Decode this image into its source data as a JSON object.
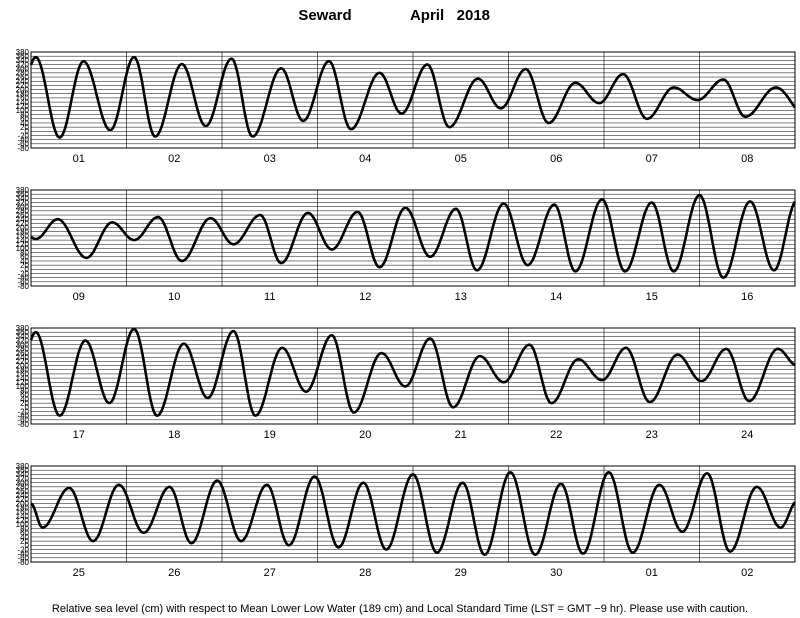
{
  "chart_data": {
    "type": "line",
    "title_station": "Seward",
    "title_period": "April   2018",
    "caption": "Relative sea level (cm) with respect to Mean Lower Low Water (189 cm) and Local Standard Time (LST = GMT −9 hr). Please use with caution.",
    "ylim": [
      -80,
      380
    ],
    "y_ticks": [
      "380",
      "360",
      "340",
      "320",
      "300",
      "280",
      "260",
      "240",
      "220",
      "200",
      "180",
      "160",
      "140",
      "120",
      "100",
      "80",
      "60",
      "40",
      "20",
      "0",
      "-20",
      "-40",
      "-60",
      "-80"
    ],
    "grid": true,
    "x_unit": "day",
    "panels": [
      {
        "day_labels": [
          "01",
          "02",
          "03",
          "04",
          "05",
          "06",
          "07",
          "08"
        ],
        "tide_events": [
          {
            "t": 0.05,
            "h": 355
          },
          {
            "t": 0.3,
            "h": -30
          },
          {
            "t": 0.55,
            "h": 335
          },
          {
            "t": 0.83,
            "h": 5
          },
          {
            "t": 1.08,
            "h": 355
          },
          {
            "t": 1.3,
            "h": -25
          },
          {
            "t": 1.58,
            "h": 322
          },
          {
            "t": 1.83,
            "h": 25
          },
          {
            "t": 2.1,
            "h": 348
          },
          {
            "t": 2.32,
            "h": -25
          },
          {
            "t": 2.62,
            "h": 302
          },
          {
            "t": 2.85,
            "h": 50
          },
          {
            "t": 3.12,
            "h": 336
          },
          {
            "t": 3.35,
            "h": 10
          },
          {
            "t": 3.65,
            "h": 280
          },
          {
            "t": 3.88,
            "h": 85
          },
          {
            "t": 4.15,
            "h": 320
          },
          {
            "t": 4.38,
            "h": 20
          },
          {
            "t": 4.68,
            "h": 252
          },
          {
            "t": 4.92,
            "h": 110
          },
          {
            "t": 5.18,
            "h": 298
          },
          {
            "t": 5.42,
            "h": 40
          },
          {
            "t": 5.7,
            "h": 232
          },
          {
            "t": 5.95,
            "h": 135
          },
          {
            "t": 6.2,
            "h": 274
          },
          {
            "t": 6.45,
            "h": 60
          },
          {
            "t": 6.73,
            "h": 210
          },
          {
            "t": 6.98,
            "h": 150
          },
          {
            "t": 7.25,
            "h": 248
          },
          {
            "t": 7.48,
            "h": 70
          },
          {
            "t": 7.8,
            "h": 210
          }
        ]
      },
      {
        "day_labels": [
          "09",
          "10",
          "11",
          "12",
          "13",
          "14",
          "15",
          "16"
        ],
        "tide_events": [
          {
            "t": 0.05,
            "h": 145
          },
          {
            "t": 0.28,
            "h": 240
          },
          {
            "t": 0.58,
            "h": 55
          },
          {
            "t": 0.85,
            "h": 225
          },
          {
            "t": 1.08,
            "h": 140
          },
          {
            "t": 1.33,
            "h": 250
          },
          {
            "t": 1.58,
            "h": 40
          },
          {
            "t": 1.88,
            "h": 245
          },
          {
            "t": 2.12,
            "h": 120
          },
          {
            "t": 2.4,
            "h": 260
          },
          {
            "t": 2.62,
            "h": 30
          },
          {
            "t": 2.9,
            "h": 270
          },
          {
            "t": 3.15,
            "h": 95
          },
          {
            "t": 3.42,
            "h": 275
          },
          {
            "t": 3.65,
            "h": 10
          },
          {
            "t": 3.92,
            "h": 295
          },
          {
            "t": 4.18,
            "h": 60
          },
          {
            "t": 4.45,
            "h": 290
          },
          {
            "t": 4.67,
            "h": -5
          },
          {
            "t": 4.95,
            "h": 315
          },
          {
            "t": 5.2,
            "h": 20
          },
          {
            "t": 5.48,
            "h": 310
          },
          {
            "t": 5.7,
            "h": -10
          },
          {
            "t": 5.98,
            "h": 335
          },
          {
            "t": 6.22,
            "h": -10
          },
          {
            "t": 6.5,
            "h": 320
          },
          {
            "t": 6.73,
            "h": -10
          },
          {
            "t": 7.0,
            "h": 355
          },
          {
            "t": 7.25,
            "h": -40
          },
          {
            "t": 7.53,
            "h": 325
          },
          {
            "t": 7.78,
            "h": -5
          },
          {
            "t": 8.02,
            "h": 330
          }
        ]
      },
      {
        "day_labels": [
          "17",
          "18",
          "19",
          "20",
          "21",
          "22",
          "23",
          "24"
        ],
        "tide_events": [
          {
            "t": 0.05,
            "h": 360
          },
          {
            "t": 0.3,
            "h": -40
          },
          {
            "t": 0.57,
            "h": 320
          },
          {
            "t": 0.82,
            "h": 20
          },
          {
            "t": 1.08,
            "h": 375
          },
          {
            "t": 1.32,
            "h": -40
          },
          {
            "t": 1.6,
            "h": 305
          },
          {
            "t": 1.85,
            "h": 45
          },
          {
            "t": 2.12,
            "h": 365
          },
          {
            "t": 2.35,
            "h": -40
          },
          {
            "t": 2.63,
            "h": 285
          },
          {
            "t": 2.88,
            "h": 75
          },
          {
            "t": 3.15,
            "h": 345
          },
          {
            "t": 3.38,
            "h": -25
          },
          {
            "t": 3.67,
            "h": 260
          },
          {
            "t": 3.92,
            "h": 100
          },
          {
            "t": 4.18,
            "h": 330
          },
          {
            "t": 4.42,
            "h": 0
          },
          {
            "t": 4.7,
            "h": 245
          },
          {
            "t": 4.95,
            "h": 120
          },
          {
            "t": 5.22,
            "h": 300
          },
          {
            "t": 5.45,
            "h": 20
          },
          {
            "t": 5.73,
            "h": 230
          },
          {
            "t": 5.98,
            "h": 130
          },
          {
            "t": 6.23,
            "h": 285
          },
          {
            "t": 6.48,
            "h": 25
          },
          {
            "t": 6.77,
            "h": 252
          },
          {
            "t": 7.02,
            "h": 125
          },
          {
            "t": 7.28,
            "h": 280
          },
          {
            "t": 7.52,
            "h": 30
          },
          {
            "t": 7.82,
            "h": 280
          },
          {
            "t": 8.02,
            "h": 200
          }
        ]
      },
      {
        "day_labels": [
          "25",
          "26",
          "27",
          "28",
          "29",
          "30",
          "01",
          "02"
        ],
        "tide_events": [
          {
            "t": 0.0,
            "h": 200
          },
          {
            "t": 0.12,
            "h": 85
          },
          {
            "t": 0.4,
            "h": 275
          },
          {
            "t": 0.65,
            "h": 20
          },
          {
            "t": 0.92,
            "h": 290
          },
          {
            "t": 1.18,
            "h": 60
          },
          {
            "t": 1.45,
            "h": 280
          },
          {
            "t": 1.68,
            "h": 10
          },
          {
            "t": 1.95,
            "h": 310
          },
          {
            "t": 2.2,
            "h": 20
          },
          {
            "t": 2.47,
            "h": 290
          },
          {
            "t": 2.7,
            "h": 0
          },
          {
            "t": 2.97,
            "h": 330
          },
          {
            "t": 3.22,
            "h": -10
          },
          {
            "t": 3.48,
            "h": 300
          },
          {
            "t": 3.72,
            "h": -20
          },
          {
            "t": 4.0,
            "h": 340
          },
          {
            "t": 4.25,
            "h": -35
          },
          {
            "t": 4.52,
            "h": 300
          },
          {
            "t": 4.75,
            "h": -45
          },
          {
            "t": 5.02,
            "h": 350
          },
          {
            "t": 5.28,
            "h": -45
          },
          {
            "t": 5.55,
            "h": 295
          },
          {
            "t": 5.78,
            "h": -40
          },
          {
            "t": 6.05,
            "h": 350
          },
          {
            "t": 6.3,
            "h": -35
          },
          {
            "t": 6.58,
            "h": 290
          },
          {
            "t": 6.82,
            "h": 65
          },
          {
            "t": 7.08,
            "h": 345
          },
          {
            "t": 7.32,
            "h": -30
          },
          {
            "t": 7.6,
            "h": 280
          },
          {
            "t": 7.85,
            "h": 85
          },
          {
            "t": 8.02,
            "h": 210
          }
        ]
      }
    ]
  }
}
